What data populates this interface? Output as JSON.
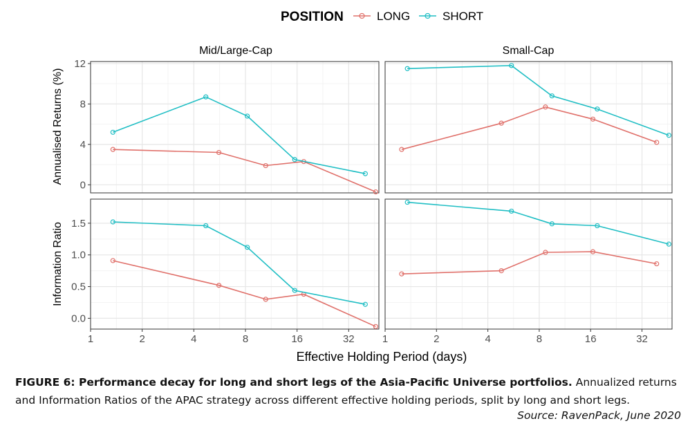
{
  "legend": {
    "title": "POSITION",
    "long_label": "LONG",
    "short_label": "SHORT"
  },
  "colors": {
    "long": "#e0706a",
    "short": "#1fbec4",
    "panel_border": "#333333",
    "grid_major": "#e6e6e6",
    "grid_minor": "#f3f3f3"
  },
  "chart_data": {
    "type": "line",
    "xlabel": "Effective Holding Period (days)",
    "x_scale": "log2",
    "xlim": [
      1,
      48
    ],
    "x_ticks": [
      1,
      2,
      4,
      8,
      16,
      32
    ],
    "columns": [
      "Mid/Large-Cap",
      "Small-Cap"
    ],
    "legend_position": "top",
    "grid": true,
    "rows": [
      {
        "ylabel": "Annualised Returns (%)",
        "ylim": [
          -0.8,
          12.2
        ],
        "y_ticks": [
          "12",
          "8",
          "4",
          "0"
        ],
        "y_tick_values": [
          12,
          8,
          4,
          0
        ]
      },
      {
        "ylabel": "Information Ratio",
        "ylim": [
          -0.17,
          1.88
        ],
        "y_ticks": [
          "1.5",
          "1.0",
          "0.5",
          "0.0"
        ],
        "y_tick_values": [
          1.5,
          1.0,
          0.5,
          0.0
        ]
      }
    ],
    "panels": [
      {
        "row": 0,
        "col": 0,
        "series": [
          {
            "name": "LONG",
            "x": [
              1.35,
              5.6,
              10.5,
              17.5,
              46
            ],
            "y": [
              3.5,
              3.2,
              1.9,
              2.3,
              -0.7
            ]
          },
          {
            "name": "SHORT",
            "x": [
              1.35,
              4.7,
              8.2,
              15.5,
              40
            ],
            "y": [
              5.2,
              8.7,
              6.8,
              2.5,
              1.1
            ]
          }
        ]
      },
      {
        "row": 0,
        "col": 1,
        "series": [
          {
            "name": "LONG",
            "x": [
              1.25,
              4.8,
              8.7,
              16.5,
              39
            ],
            "y": [
              3.5,
              6.1,
              7.7,
              6.5,
              4.2
            ]
          },
          {
            "name": "SHORT",
            "x": [
              1.35,
              5.5,
              9.5,
              17.5,
              46
            ],
            "y": [
              11.5,
              11.8,
              8.8,
              7.5,
              4.9
            ]
          }
        ]
      },
      {
        "row": 1,
        "col": 0,
        "series": [
          {
            "name": "LONG",
            "x": [
              1.35,
              5.6,
              10.5,
              17.5,
              46
            ],
            "y": [
              0.91,
              0.52,
              0.3,
              0.38,
              -0.13
            ]
          },
          {
            "name": "SHORT",
            "x": [
              1.35,
              4.7,
              8.2,
              15.5,
              40
            ],
            "y": [
              1.52,
              1.46,
              1.12,
              0.44,
              0.22
            ]
          }
        ]
      },
      {
        "row": 1,
        "col": 1,
        "series": [
          {
            "name": "LONG",
            "x": [
              1.25,
              4.8,
              8.7,
              16.5,
              39
            ],
            "y": [
              0.7,
              0.75,
              1.04,
              1.05,
              0.86
            ]
          },
          {
            "name": "SHORT",
            "x": [
              1.35,
              5.5,
              9.5,
              17.5,
              46
            ],
            "y": [
              1.83,
              1.69,
              1.49,
              1.46,
              1.17
            ]
          }
        ]
      }
    ]
  },
  "caption": {
    "label": "FIGURE 6: Performance decay for long and short legs of the Asia-Pacific Universe portfolios.",
    "text": " Annualized returns and Information Ratios of the APAC strategy across different effective holding periods, split by long and short legs.",
    "source": "Source: RavenPack, June 2020"
  }
}
